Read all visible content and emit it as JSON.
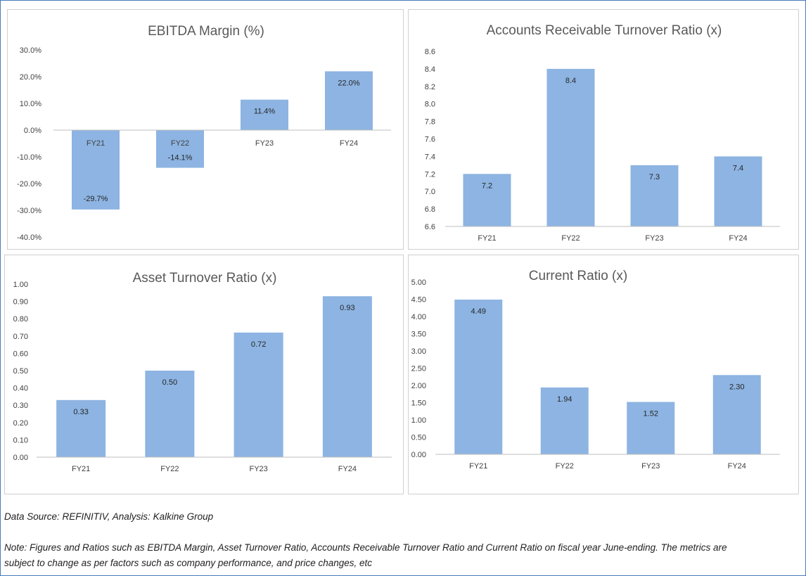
{
  "colors": {
    "bar": "#8db4e2",
    "axis": "#bfbfbf",
    "frame": "#4a7bbd"
  },
  "chart_data": [
    {
      "type": "bar",
      "title": "EBITDA Margin (%)",
      "categories": [
        "FY21",
        "FY22",
        "FY23",
        "FY24"
      ],
      "values": [
        -29.7,
        -14.1,
        11.4,
        22.0
      ],
      "data_labels": [
        "-29.7%",
        "-14.1%",
        "11.4%",
        "22.0%"
      ],
      "ylim": [
        -40,
        30
      ],
      "yticks": [
        30,
        20,
        10,
        0,
        -10,
        -20,
        -30,
        -40
      ],
      "ytick_labels": [
        "30.0%",
        "20.0%",
        "10.0%",
        "0.0%",
        "-10.0%",
        "-20.0%",
        "-30.0%",
        "-40.0%"
      ],
      "grid": false,
      "legend": "none"
    },
    {
      "type": "bar",
      "title": "Accounts Receivable Turnover Ratio (x)",
      "categories": [
        "FY21",
        "FY22",
        "FY23",
        "FY24"
      ],
      "values": [
        7.2,
        8.4,
        7.3,
        7.4
      ],
      "data_labels": [
        "7.2",
        "8.4",
        "7.3",
        "7.4"
      ],
      "ylim": [
        6.6,
        8.6
      ],
      "yticks": [
        8.6,
        8.4,
        8.2,
        8.0,
        7.8,
        7.6,
        7.4,
        7.2,
        7.0,
        6.8,
        6.6
      ],
      "ytick_labels": [
        "8.6",
        "8.4",
        "8.2",
        "8.0",
        "7.8",
        "7.6",
        "7.4",
        "7.2",
        "7.0",
        "6.8",
        "6.6"
      ],
      "grid": false,
      "legend": "none"
    },
    {
      "type": "bar",
      "title": "Asset Turnover Ratio (x)",
      "categories": [
        "FY21",
        "FY22",
        "FY23",
        "FY24"
      ],
      "values": [
        0.33,
        0.5,
        0.72,
        0.93
      ],
      "data_labels": [
        "0.33",
        "0.50",
        "0.72",
        "0.93"
      ],
      "ylim": [
        0,
        1.0
      ],
      "yticks": [
        1.0,
        0.9,
        0.8,
        0.7,
        0.6,
        0.5,
        0.4,
        0.3,
        0.2,
        0.1,
        0.0
      ],
      "ytick_labels": [
        "1.00",
        "0.90",
        "0.80",
        "0.70",
        "0.60",
        "0.50",
        "0.40",
        "0.30",
        "0.20",
        "0.10",
        "0.00"
      ],
      "grid": false,
      "legend": "none"
    },
    {
      "type": "bar",
      "title": "Current Ratio (x)",
      "categories": [
        "FY21",
        "FY22",
        "FY23",
        "FY24"
      ],
      "values": [
        4.49,
        1.94,
        1.52,
        2.3
      ],
      "data_labels": [
        "4.49",
        "1.94",
        "1.52",
        "2.30"
      ],
      "ylim": [
        0,
        5.0
      ],
      "yticks": [
        5.0,
        4.5,
        4.0,
        3.5,
        3.0,
        2.5,
        2.0,
        1.5,
        1.0,
        0.5,
        0.0
      ],
      "ytick_labels": [
        "5.00",
        "4.50",
        "4.00",
        "3.50",
        "3.00",
        "2.50",
        "2.00",
        "1.50",
        "1.00",
        "0.50",
        "0.00"
      ],
      "grid": false,
      "legend": "none"
    }
  ],
  "footer": {
    "source": "Data Source: REFINITIV, Analysis: Kalkine Group",
    "note_line1": "Note: Figures and Ratios such as EBITDA Margin, Asset Turnover Ratio, Accounts Receivable Turnover Ratio and Current Ratio on fiscal year June-ending. The metrics are",
    "note_line2": "subject to change as per factors such as company performance, and price changes, etc"
  }
}
